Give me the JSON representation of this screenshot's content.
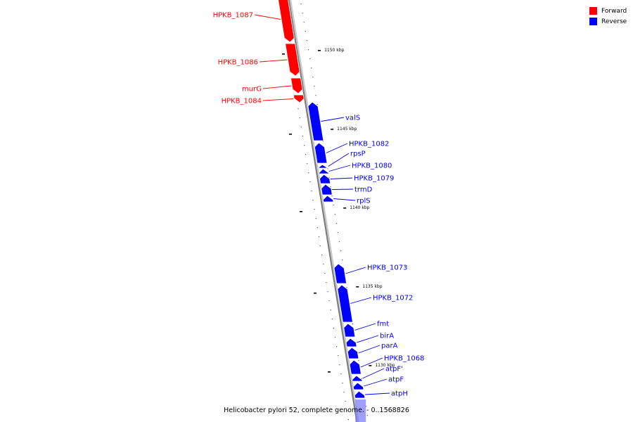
{
  "title": "Helicobacter pylori 52, complete genome. - 0..1568826",
  "colors": {
    "forward": "#ff0000",
    "reverse": "#0000ff"
  },
  "legend": [
    {
      "label": "Forward",
      "color": "#ff0000"
    },
    {
      "label": "Reverse",
      "color": "#0000ff"
    }
  ],
  "ticks": [
    {
      "pos_kbp": 1150,
      "label": "1150 kbp"
    },
    {
      "pos_kbp": 1145,
      "label": "1145 kbp"
    },
    {
      "pos_kbp": 1140,
      "label": "1140 kbp"
    },
    {
      "pos_kbp": 1135,
      "label": "1135 kbp"
    },
    {
      "pos_kbp": 1130,
      "label": "1130 kbp"
    }
  ],
  "genes": [
    {
      "name": "HPKB_1087",
      "strand": "forward"
    },
    {
      "name": "HPKB_1086",
      "strand": "forward"
    },
    {
      "name": "murG",
      "strand": "forward"
    },
    {
      "name": "HPKB_1084",
      "strand": "forward"
    },
    {
      "name": "valS",
      "strand": "reverse"
    },
    {
      "name": "HPKB_1082",
      "strand": "reverse"
    },
    {
      "name": "rpsP",
      "strand": "reverse"
    },
    {
      "name": "HPKB_1080",
      "strand": "reverse"
    },
    {
      "name": "HPKB_1079",
      "strand": "reverse"
    },
    {
      "name": "trmD",
      "strand": "reverse"
    },
    {
      "name": "rplS",
      "strand": "reverse"
    },
    {
      "name": "HPKB_1073",
      "strand": "reverse"
    },
    {
      "name": "HPKB_1072",
      "strand": "reverse"
    },
    {
      "name": "fmt",
      "strand": "reverse"
    },
    {
      "name": "birA",
      "strand": "reverse"
    },
    {
      "name": "parA",
      "strand": "reverse"
    },
    {
      "name": "HPKB_1068",
      "strand": "reverse"
    },
    {
      "name": "atpF'",
      "strand": "reverse"
    },
    {
      "name": "atpF",
      "strand": "reverse"
    },
    {
      "name": "atpH",
      "strand": "reverse"
    }
  ]
}
